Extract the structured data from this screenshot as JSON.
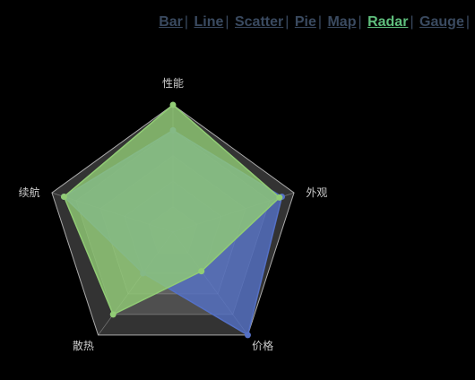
{
  "nav": {
    "items": [
      {
        "label": "Bar",
        "active": false
      },
      {
        "label": "Line",
        "active": false
      },
      {
        "label": "Scatter",
        "active": false
      },
      {
        "label": "Pie",
        "active": false
      },
      {
        "label": "Map",
        "active": false
      },
      {
        "label": "Radar",
        "active": true
      },
      {
        "label": "Gauge",
        "active": false
      }
    ]
  },
  "chart_data": {
    "type": "radar",
    "indicators": [
      {
        "name": "性能",
        "max": 100
      },
      {
        "name": "外观",
        "max": 100
      },
      {
        "name": "价格",
        "max": 100
      },
      {
        "name": "散热",
        "max": 100
      },
      {
        "name": "续航",
        "max": 100
      }
    ],
    "series": [
      {
        "values": [
          80,
          90,
          100,
          40,
          90
        ],
        "color": "#5470c6"
      },
      {
        "values": [
          100,
          88,
          38,
          80,
          90
        ],
        "color": "#91cc75"
      }
    ],
    "split_number": 5,
    "colors": {
      "area_fill": "#7a7a7a",
      "split_line": "#bbbbbb",
      "label": "#cccccc"
    }
  }
}
